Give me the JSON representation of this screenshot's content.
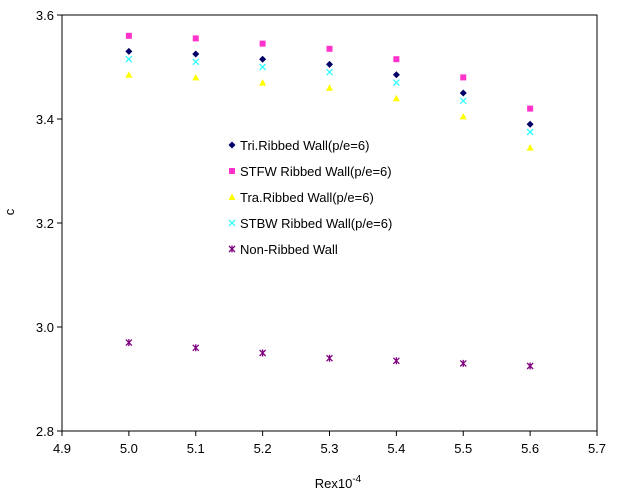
{
  "chart_data": {
    "type": "scatter",
    "xlim": [
      4.9,
      5.7
    ],
    "ylim": [
      2.8,
      3.6
    ],
    "x_ticks": [
      "4.9",
      "5.0",
      "5.1",
      "5.2",
      "5.3",
      "5.4",
      "5.5",
      "5.6",
      "5.7"
    ],
    "y_ticks": [
      "2.8",
      "3.0",
      "3.2",
      "3.4",
      "3.6"
    ],
    "xlabel_base": "Rex10",
    "xlabel_sup": "-4",
    "ylabel": "c",
    "grid": false,
    "legend_position": "center",
    "x": [
      5.0,
      5.1,
      5.2,
      5.3,
      5.4,
      5.5,
      5.6
    ],
    "series": [
      {
        "name": "Tri.Ribbed Wall(p/e=6)",
        "marker": "diamond",
        "color": "#000066",
        "values": [
          3.53,
          3.525,
          3.515,
          3.505,
          3.485,
          3.45,
          3.39
        ]
      },
      {
        "name": "STFW Ribbed Wall(p/e=6)",
        "marker": "square",
        "color": "#ff33cc",
        "values": [
          3.56,
          3.555,
          3.545,
          3.535,
          3.515,
          3.48,
          3.42
        ]
      },
      {
        "name": "Tra.Ribbed Wall(p/e=6)",
        "marker": "triangle",
        "color": "#ffff00",
        "values": [
          3.485,
          3.48,
          3.47,
          3.46,
          3.44,
          3.405,
          3.345
        ]
      },
      {
        "name": "STBW Ribbed Wall(p/e=6)",
        "marker": "x",
        "color": "#33ffff",
        "values": [
          3.515,
          3.51,
          3.5,
          3.49,
          3.47,
          3.435,
          3.375
        ]
      },
      {
        "name": "Non-Ribbed Wall",
        "marker": "asterisk",
        "color": "#800080",
        "values": [
          2.97,
          2.96,
          2.95,
          2.94,
          2.935,
          2.93,
          2.925
        ]
      }
    ]
  }
}
